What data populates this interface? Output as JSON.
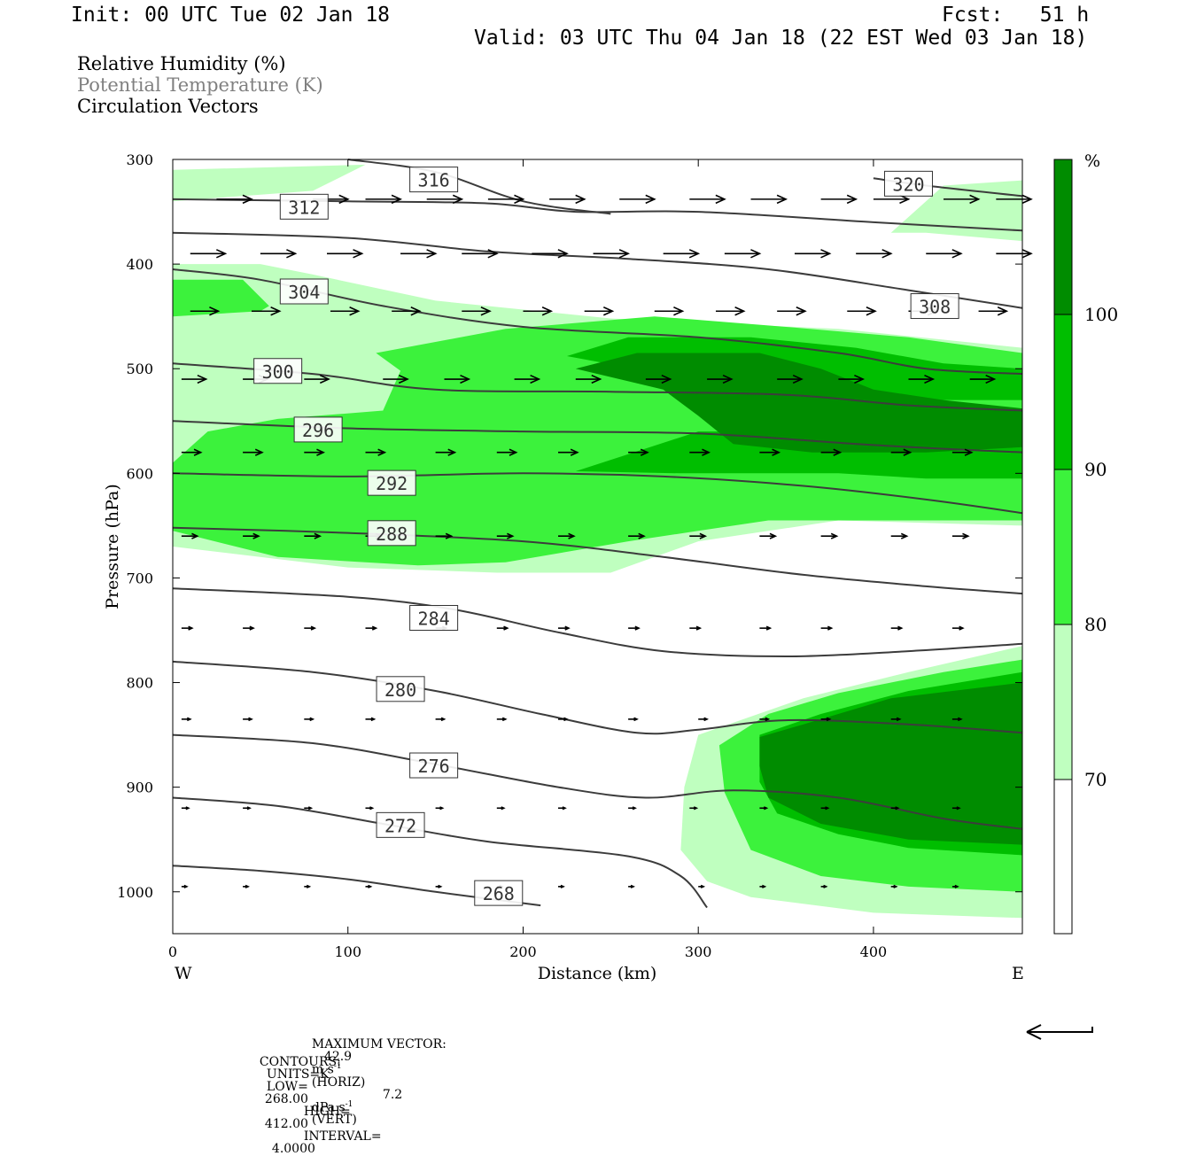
{
  "header": {
    "init": "Init: 00 UTC Tue 02 Jan 18",
    "fcst": "Fcst:   51 h",
    "valid": "Valid: 03 UTC Thu 04 Jan 18 (22 EST Wed 03 Jan 18)"
  },
  "legend": {
    "rh": "Relative Humidity (%)",
    "theta": "Potential Temperature (K)",
    "vectors": "Circulation Vectors"
  },
  "colors": {
    "rh_70_80": "#bfffbf",
    "rh_80_90": "#3cf23c",
    "rh_90_100": "#00be00",
    "rh_100": "#008c00",
    "contour": "#3c3c3c",
    "theta_legend": "#808080"
  },
  "chart_data": {
    "type": "contour",
    "xlabel": "Distance (km)",
    "ylabel": "Pressure (hPa)",
    "x_ticks": [
      "0",
      "100",
      "200",
      "300",
      "400"
    ],
    "y_ticks": [
      "300",
      "400",
      "500",
      "600",
      "700",
      "800",
      "900",
      "1000"
    ],
    "xlim": [
      0,
      485
    ],
    "ylim": [
      1040,
      300
    ],
    "x_end_labels": {
      "left": "W",
      "right": "E"
    },
    "colorbar": {
      "unit": "%",
      "levels": [
        "70",
        "80",
        "90",
        "100"
      ]
    },
    "theta_contours": [
      {
        "label": "268",
        "points": [
          [
            0,
            975
          ],
          [
            50,
            980
          ],
          [
            100,
            988
          ],
          [
            150,
            1000
          ],
          [
            210,
            1013
          ]
        ],
        "label_at": [
          186,
          1002
        ]
      },
      {
        "label": "272",
        "points": [
          [
            0,
            910
          ],
          [
            60,
            918
          ],
          [
            120,
            935
          ],
          [
            180,
            952
          ],
          [
            260,
            966
          ],
          [
            290,
            985
          ],
          [
            305,
            1015
          ]
        ],
        "label_at": [
          130,
          937
        ]
      },
      {
        "label": "276",
        "points": [
          [
            0,
            850
          ],
          [
            80,
            858
          ],
          [
            150,
            878
          ],
          [
            220,
            900
          ],
          [
            270,
            910
          ],
          [
            320,
            903
          ],
          [
            380,
            910
          ],
          [
            440,
            930
          ],
          [
            485,
            940
          ]
        ],
        "label_at": [
          149,
          880
        ]
      },
      {
        "label": "280",
        "points": [
          [
            0,
            780
          ],
          [
            80,
            790
          ],
          [
            150,
            808
          ],
          [
            210,
            830
          ],
          [
            265,
            848
          ],
          [
            300,
            845
          ],
          [
            350,
            836
          ],
          [
            420,
            840
          ],
          [
            485,
            848
          ]
        ],
        "label_at": [
          130,
          807
        ]
      },
      {
        "label": "284",
        "points": [
          [
            0,
            710
          ],
          [
            100,
            718
          ],
          [
            160,
            730
          ],
          [
            220,
            752
          ],
          [
            280,
            770
          ],
          [
            350,
            775
          ],
          [
            420,
            770
          ],
          [
            485,
            763
          ]
        ],
        "label_at": [
          149,
          739
        ]
      },
      {
        "label": "288",
        "points": [
          [
            0,
            652
          ],
          [
            100,
            657
          ],
          [
            200,
            665
          ],
          [
            280,
            680
          ],
          [
            360,
            697
          ],
          [
            430,
            708
          ],
          [
            485,
            715
          ]
        ],
        "label_at": [
          125,
          658
        ]
      },
      {
        "label": "292",
        "points": [
          [
            0,
            600
          ],
          [
            100,
            603
          ],
          [
            200,
            600
          ],
          [
            280,
            603
          ],
          [
            360,
            612
          ],
          [
            430,
            625
          ],
          [
            485,
            638
          ]
        ],
        "label_at": [
          125,
          610
        ]
      },
      {
        "label": "296",
        "points": [
          [
            0,
            550
          ],
          [
            100,
            557
          ],
          [
            200,
            560
          ],
          [
            300,
            562
          ],
          [
            400,
            573
          ],
          [
            485,
            580
          ]
        ],
        "label_at": [
          83,
          559
        ]
      },
      {
        "label": "300",
        "points": [
          [
            0,
            495
          ],
          [
            80,
            505
          ],
          [
            150,
            520
          ],
          [
            250,
            522
          ],
          [
            350,
            525
          ],
          [
            420,
            535
          ],
          [
            485,
            540
          ]
        ],
        "label_at": [
          60,
          503
        ]
      },
      {
        "label": "304",
        "points": [
          [
            0,
            405
          ],
          [
            50,
            415
          ],
          [
            120,
            440
          ],
          [
            200,
            460
          ],
          [
            300,
            470
          ],
          [
            380,
            485
          ],
          [
            430,
            500
          ],
          [
            485,
            505
          ]
        ],
        "label_at": [
          75,
          427
        ]
      },
      {
        "label": "308",
        "points": [
          [
            0,
            370
          ],
          [
            100,
            375
          ],
          [
            180,
            388
          ],
          [
            260,
            395
          ],
          [
            340,
            405
          ],
          [
            420,
            425
          ],
          [
            485,
            442
          ]
        ],
        "label_at": [
          435,
          441
        ]
      },
      {
        "label": "312",
        "points": [
          [
            0,
            338
          ],
          [
            100,
            340
          ],
          [
            180,
            342
          ],
          [
            230,
            350
          ],
          [
            300,
            350
          ],
          [
            400,
            360
          ],
          [
            485,
            368
          ]
        ],
        "label_at": [
          75,
          346
        ]
      },
      {
        "label": "316",
        "points": [
          [
            100,
            300
          ],
          [
            150,
            312
          ],
          [
            200,
            340
          ],
          [
            250,
            352
          ]
        ],
        "label_at": [
          149,
          320
        ]
      },
      {
        "label": "320",
        "points": [
          [
            400,
            318
          ],
          [
            430,
            325
          ],
          [
            485,
            335
          ]
        ],
        "label_at": [
          420,
          324
        ]
      }
    ],
    "rh_regions": [
      {
        "level": "70-80",
        "points": [
          [
            0,
            310
          ],
          [
            110,
            305
          ],
          [
            80,
            330
          ],
          [
            0,
            340
          ]
        ]
      },
      {
        "level": "70-80",
        "points": [
          [
            0,
            400
          ],
          [
            50,
            400
          ],
          [
            80,
            410
          ],
          [
            150,
            435
          ],
          [
            250,
            452
          ],
          [
            380,
            462
          ],
          [
            485,
            480
          ],
          [
            485,
            650
          ],
          [
            380,
            645
          ],
          [
            300,
            665
          ],
          [
            250,
            695
          ],
          [
            185,
            695
          ],
          [
            100,
            690
          ],
          [
            0,
            670
          ]
        ]
      },
      {
        "level": "70-80",
        "points": [
          [
            410,
            370
          ],
          [
            440,
            325
          ],
          [
            485,
            320
          ],
          [
            485,
            378
          ],
          [
            430,
            370
          ]
        ]
      },
      {
        "level": "70-80",
        "points": [
          [
            300,
            850
          ],
          [
            360,
            815
          ],
          [
            420,
            790
          ],
          [
            485,
            765
          ],
          [
            485,
            1025
          ],
          [
            400,
            1020
          ],
          [
            330,
            1005
          ],
          [
            305,
            990
          ],
          [
            290,
            960
          ],
          [
            292,
            900
          ]
        ]
      },
      {
        "level": "80-90",
        "points": [
          [
            0,
            415
          ],
          [
            40,
            415
          ],
          [
            55,
            440
          ],
          [
            50,
            445
          ],
          [
            0,
            450
          ]
        ]
      },
      {
        "level": "80-90",
        "points": [
          [
            0,
            590
          ],
          [
            20,
            560
          ],
          [
            60,
            548
          ],
          [
            120,
            540
          ],
          [
            130,
            502
          ],
          [
            116,
            485
          ],
          [
            190,
            462
          ],
          [
            275,
            450
          ],
          [
            350,
            460
          ],
          [
            420,
            470
          ],
          [
            485,
            485
          ],
          [
            485,
            645
          ],
          [
            390,
            645
          ],
          [
            340,
            645
          ],
          [
            300,
            655
          ],
          [
            260,
            665
          ],
          [
            190,
            685
          ],
          [
            140,
            688
          ],
          [
            60,
            680
          ],
          [
            0,
            655
          ]
        ]
      },
      {
        "level": "80-90",
        "points": [
          [
            312,
            860
          ],
          [
            340,
            830
          ],
          [
            380,
            810
          ],
          [
            440,
            790
          ],
          [
            485,
            778
          ],
          [
            485,
            1000
          ],
          [
            420,
            995
          ],
          [
            370,
            985
          ],
          [
            330,
            960
          ],
          [
            315,
            905
          ]
        ]
      },
      {
        "level": "90-100",
        "points": [
          [
            225,
            488
          ],
          [
            260,
            470
          ],
          [
            330,
            470
          ],
          [
            390,
            480
          ],
          [
            440,
            495
          ],
          [
            485,
            500
          ],
          [
            485,
            605
          ],
          [
            430,
            605
          ],
          [
            380,
            600
          ],
          [
            335,
            600
          ],
          [
            290,
            600
          ],
          [
            230,
            598
          ],
          [
            300,
            560
          ],
          [
            360,
            560
          ],
          [
            440,
            555
          ],
          [
            485,
            555
          ],
          [
            485,
            530
          ],
          [
            420,
            530
          ],
          [
            340,
            510
          ],
          [
            280,
            505
          ]
        ]
      },
      {
        "level": "90-100",
        "points": [
          [
            335,
            850
          ],
          [
            370,
            830
          ],
          [
            420,
            808
          ],
          [
            485,
            790
          ],
          [
            485,
            965
          ],
          [
            420,
            958
          ],
          [
            380,
            945
          ],
          [
            345,
            925
          ],
          [
            335,
            895
          ]
        ]
      },
      {
        "level": "100",
        "points": [
          [
            230,
            500
          ],
          [
            265,
            485
          ],
          [
            335,
            485
          ],
          [
            370,
            500
          ],
          [
            400,
            520
          ],
          [
            440,
            530
          ],
          [
            485,
            538
          ],
          [
            485,
            575
          ],
          [
            430,
            580
          ],
          [
            365,
            580
          ],
          [
            320,
            572
          ],
          [
            300,
            545
          ],
          [
            280,
            520
          ]
        ]
      },
      {
        "level": "100",
        "points": [
          [
            335,
            852
          ],
          [
            360,
            840
          ],
          [
            410,
            815
          ],
          [
            485,
            800
          ],
          [
            485,
            955
          ],
          [
            420,
            950
          ],
          [
            370,
            935
          ],
          [
            340,
            910
          ],
          [
            335,
            880
          ]
        ]
      }
    ],
    "vectors": {
      "rows": [
        {
          "p": 338,
          "length": 20,
          "xs": [
            25,
            80,
            110,
            145,
            180,
            215,
            255,
            295,
            330,
            370,
            400,
            440,
            470
          ]
        },
        {
          "p": 390,
          "length": 20,
          "xs": [
            10,
            50,
            88,
            130,
            165,
            205,
            240,
            280,
            315,
            355,
            390,
            430,
            470
          ]
        },
        {
          "p": 445,
          "length": 16,
          "xs": [
            10,
            45,
            90,
            125,
            165,
            200,
            235,
            275,
            310,
            345,
            385,
            420,
            460
          ]
        },
        {
          "p": 510,
          "length": 14,
          "xs": [
            5,
            40,
            75,
            120,
            155,
            195,
            230,
            270,
            305,
            345,
            380,
            420,
            455
          ]
        },
        {
          "p": 580,
          "length": 11,
          "xs": [
            5,
            40,
            75,
            110,
            150,
            185,
            220,
            260,
            295,
            335,
            370,
            410,
            445
          ]
        },
        {
          "p": 660,
          "length": 9,
          "xs": [
            5,
            40,
            75,
            110,
            150,
            185,
            220,
            260,
            295,
            335,
            370,
            410,
            445
          ]
        },
        {
          "p": 748,
          "length": 6,
          "xs": [
            5,
            40,
            75,
            110,
            150,
            185,
            220,
            260,
            295,
            335,
            370,
            410,
            445
          ]
        },
        {
          "p": 835,
          "length": 5,
          "xs": [
            5,
            40,
            75,
            110,
            150,
            185,
            220,
            260,
            300,
            335,
            370,
            410,
            445
          ]
        },
        {
          "p": 920,
          "length": 4,
          "xs": [
            5,
            40,
            75,
            110,
            150,
            185,
            220,
            260,
            295,
            335,
            370,
            410,
            445
          ]
        },
        {
          "p": 995,
          "length": 3,
          "xs": [
            5,
            40,
            75,
            110,
            150,
            185,
            220,
            260,
            300,
            335,
            370,
            410,
            445
          ]
        }
      ]
    }
  },
  "footer": {
    "max_vector_label": "MAXIMUM VECTOR:",
    "horiz_value": "42.9",
    "horiz_unit_a": "m s",
    "horiz_exp": "-1",
    "horiz_tag": "(HORIZ)",
    "vert_value": "7.2",
    "vert_unit_a": "dPa s",
    "vert_exp": "-1",
    "vert_tag": "(VERT)",
    "contours_label": "CONTOURS:",
    "units": "UNITS=K",
    "low_label": "LOW=",
    "low": "268.00",
    "high_label": "HIGH=",
    "high": "412.00",
    "interval_label": "INTERVAL=",
    "interval": "4.0000"
  }
}
